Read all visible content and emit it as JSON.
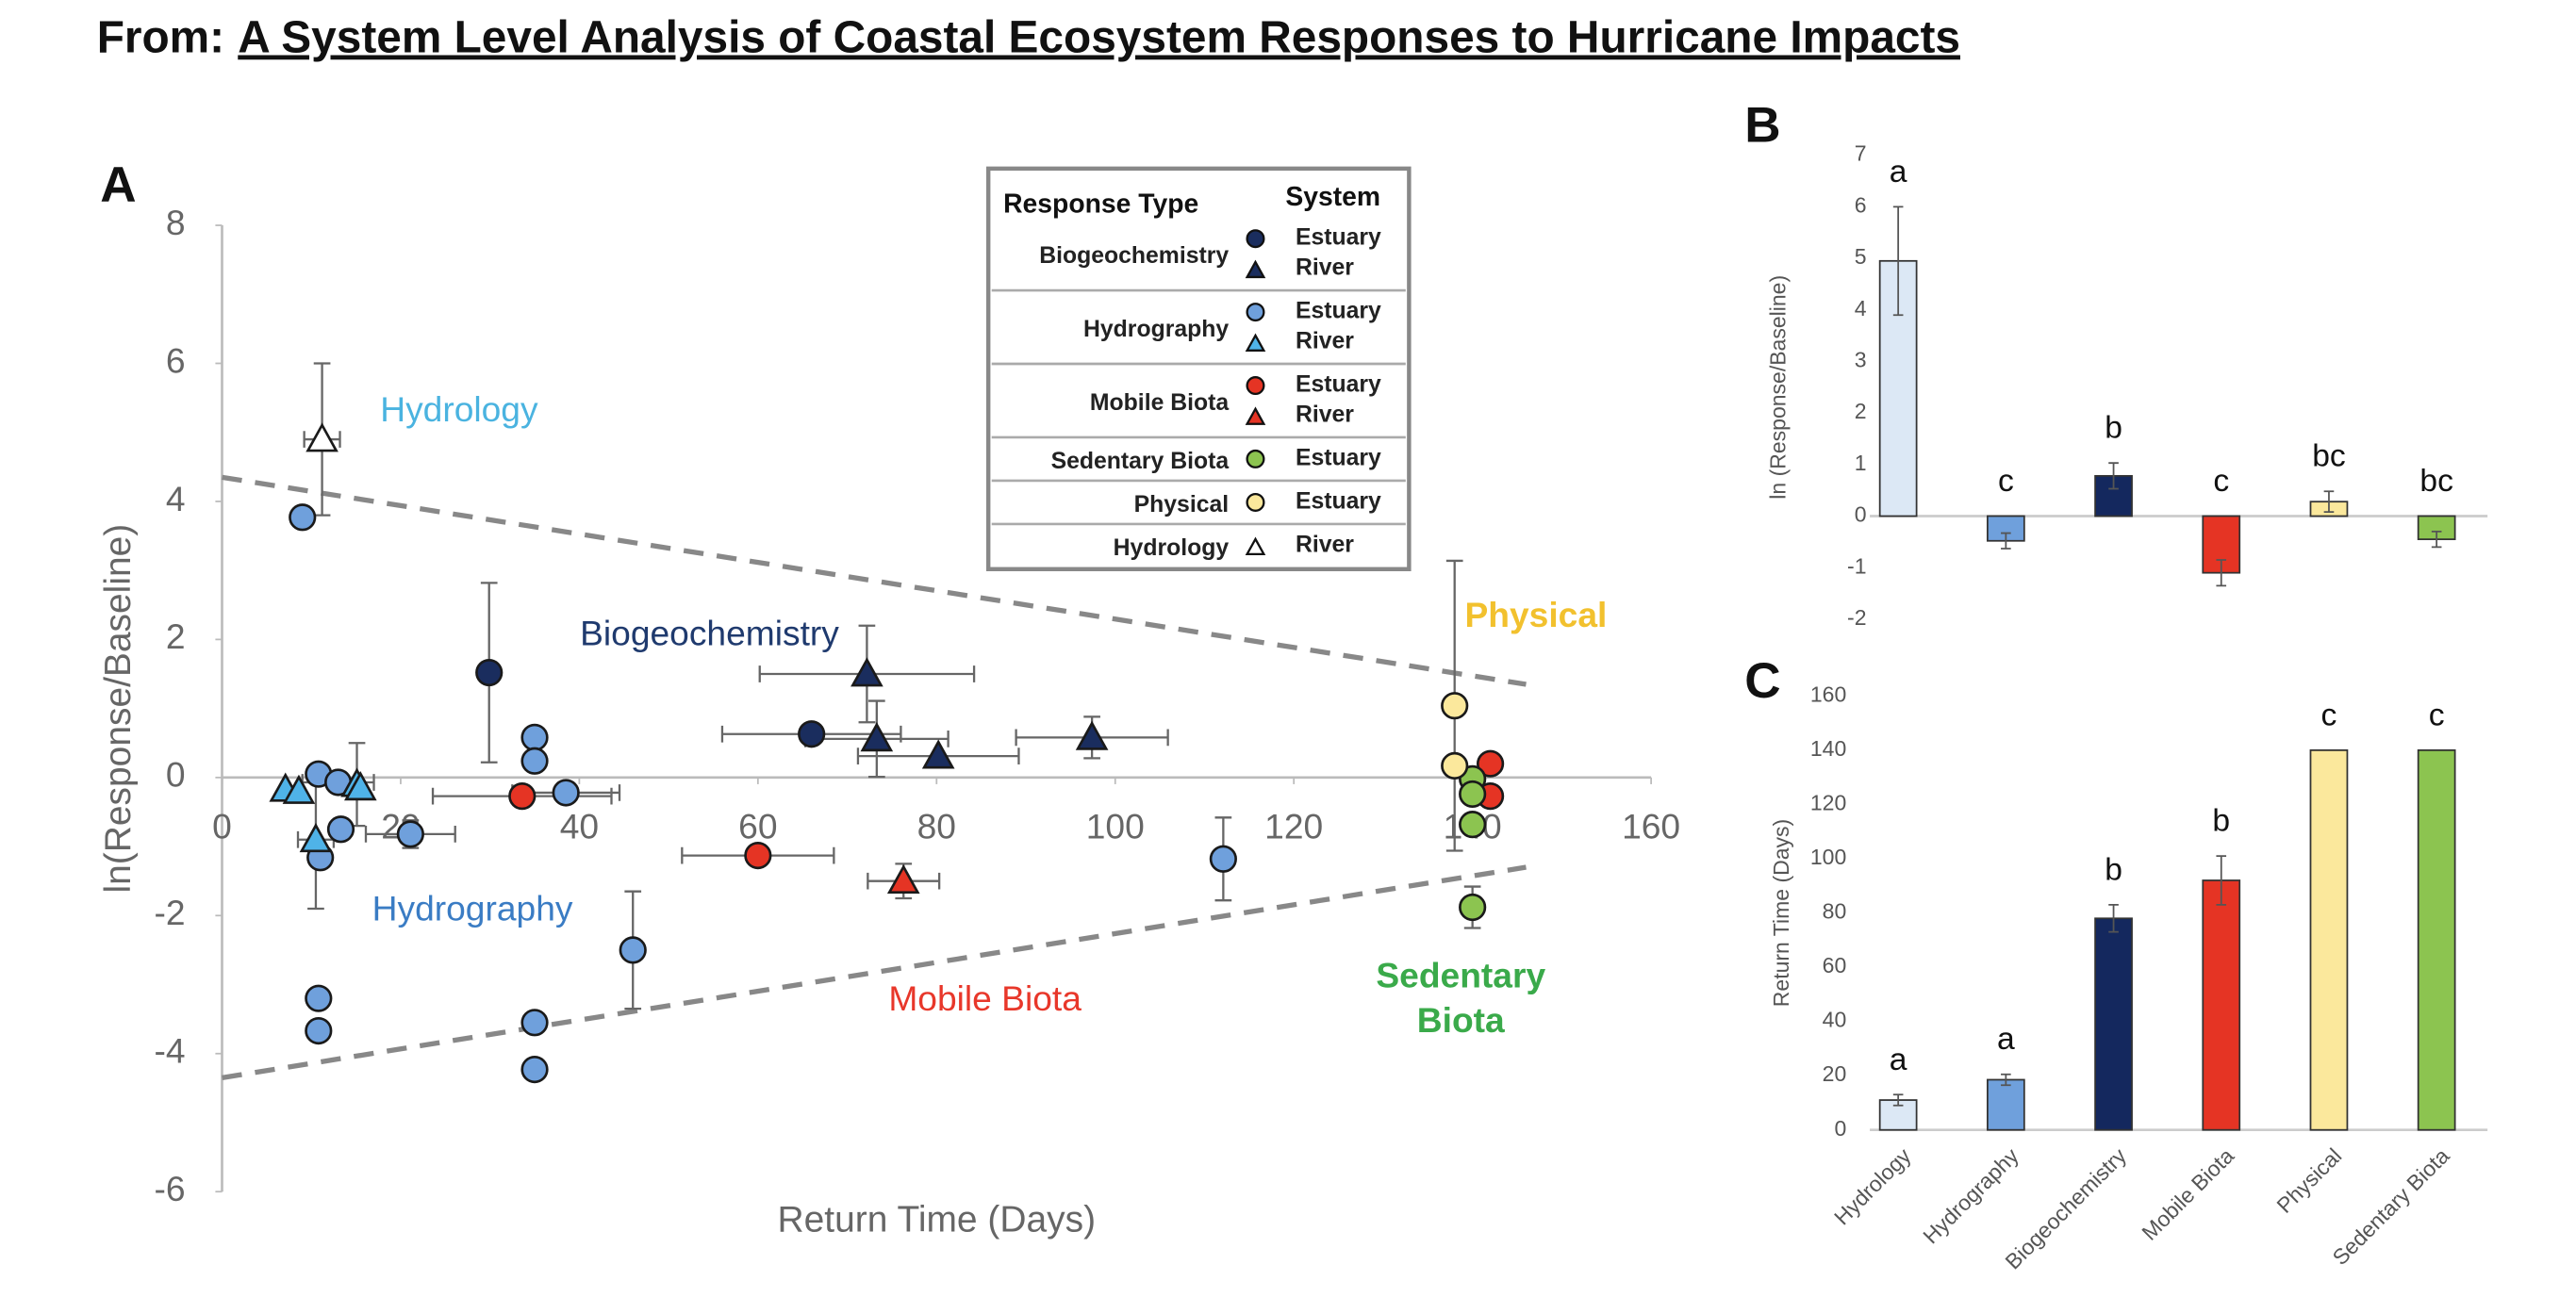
{
  "header": {
    "prefix": "From:",
    "title": "A System Level Analysis of Coastal Ecosystem Responses to Hurricane Impacts"
  },
  "chart_data": [
    {
      "type": "scatter",
      "panel": "A",
      "xlabel": "Return Time (Days)",
      "ylabel": "ln(Response/Baseline)",
      "xlim": [
        0,
        160
      ],
      "xticks": [
        0,
        20,
        40,
        60,
        80,
        100,
        120,
        140,
        160
      ],
      "ylim": [
        -6,
        8
      ],
      "yticks": [
        -6,
        -4,
        -2,
        0,
        2,
        4,
        6,
        8
      ],
      "legend": {
        "title": "Response Type",
        "system_title": "System",
        "corner": "top-right"
      },
      "series": [
        {
          "name": "Estuary",
          "group": "Biogeochemistry",
          "color": "#1a2d5e",
          "marker": "circle",
          "x": [
            29.9,
            66
          ],
          "values": [
            1.52,
            0.63
          ],
          "xerr": [
            null,
            10
          ],
          "yerr": [
            1.3,
            null
          ]
        },
        {
          "name": "River",
          "group": "Biogeochemistry",
          "color": "#1a2d5e",
          "marker": "triangle",
          "x": [
            72.2,
            73.3,
            80.2,
            97.4
          ],
          "values": [
            1.5,
            0.56,
            0.31,
            0.58
          ],
          "xerr": [
            12,
            8,
            9,
            8.5
          ],
          "yerr": [
            0.7,
            0.55,
            null,
            0.3
          ]
        },
        {
          "name": "Estuary",
          "group": "Hydrography",
          "color": "#6fa0dc",
          "marker": "circle",
          "x": [
            9,
            10.8,
            13,
            11,
            13.3,
            21.1,
            35,
            35,
            38.5,
            10.8,
            10.8,
            35,
            35,
            46,
            112.1
          ],
          "values": [
            3.77,
            0.05,
            -0.07,
            -1.16,
            -0.75,
            -0.82,
            0.58,
            0.24,
            -0.22,
            -3.2,
            -3.67,
            -3.55,
            -4.23,
            -2.5,
            -1.18
          ],
          "xerr": [
            null,
            null,
            4,
            null,
            null,
            5,
            null,
            null,
            6,
            null,
            null,
            null,
            null,
            null,
            null
          ],
          "yerr": [
            null,
            null,
            null,
            null,
            null,
            0.2,
            null,
            null,
            null,
            null,
            null,
            null,
            null,
            0.85,
            0.6
          ]
        },
        {
          "name": "River",
          "group": "Hydrography",
          "color": "#4fb3e8",
          "marker": "triangle",
          "x": [
            7.1,
            8.6,
            10.5,
            15.1,
            15.5
          ],
          "values": [
            -0.17,
            -0.2,
            -0.9,
            -0.1,
            -0.15
          ],
          "xerr": [
            null,
            null,
            2,
            null,
            null
          ],
          "yerr": [
            null,
            null,
            1,
            0.6,
            null
          ]
        },
        {
          "name": "Estuary",
          "group": "Mobile Biota",
          "color": "#e53424",
          "marker": "circle",
          "x": [
            33.6,
            60,
            142,
            142
          ],
          "values": [
            -0.27,
            -1.13,
            0.2,
            -0.27
          ],
          "xerr": [
            10,
            8.5,
            null,
            null
          ],
          "yerr": [
            null,
            null,
            null,
            null
          ]
        },
        {
          "name": "River",
          "group": "Mobile Biota",
          "color": "#e53424",
          "marker": "triangle",
          "x": [
            76.3
          ],
          "values": [
            -1.5
          ],
          "xerr": [
            4
          ],
          "yerr": [
            0.25
          ]
        },
        {
          "name": "Estuary",
          "group": "Sedentary Biota",
          "color": "#8cc450",
          "marker": "circle",
          "x": [
            140,
            140,
            140,
            140
          ],
          "values": [
            -0.02,
            -0.24,
            -0.68,
            -1.88
          ],
          "xerr": [
            null,
            null,
            null,
            null
          ],
          "yerr": [
            null,
            null,
            null,
            0.3
          ]
        },
        {
          "name": "Estuary",
          "group": "Physical",
          "color": "#fbe89c",
          "marker": "circle",
          "x": [
            138,
            138
          ],
          "values": [
            1.04,
            0.17
          ],
          "xerr": [
            null,
            null
          ],
          "yerr": [
            2.1,
            null
          ]
        },
        {
          "name": "River",
          "group": "Hydrology",
          "color": "#ffffff",
          "marker": "triangle",
          "x": [
            11.2
          ],
          "values": [
            4.9
          ],
          "xerr": [
            2
          ],
          "yerr": [
            1.1
          ]
        }
      ],
      "reference_lines": [
        {
          "x": [
            0,
            146
          ],
          "y": [
            4.35,
            1.35
          ],
          "color": "#888888"
        },
        {
          "x": [
            0,
            146
          ],
          "y": [
            -4.35,
            -1.3
          ],
          "color": "#888888"
        }
      ],
      "annotations": [
        {
          "text": "Hydrology",
          "color": "#4ab3e0"
        },
        {
          "text": "Biogeochemistry",
          "color": "#1f3a6e"
        },
        {
          "text": "Physical",
          "color": "#f2c12e"
        },
        {
          "text": "Hydrography",
          "color": "#3a7cc4"
        },
        {
          "text": "Mobile Biota",
          "color": "#e8372a"
        },
        {
          "text": "Sedentary",
          "color": "#3aaa4a"
        },
        {
          "text": "Biota",
          "color": "#3aaa4a"
        }
      ]
    },
    {
      "type": "bar",
      "panel": "B",
      "ylabel": "ln (Response/Baseline)",
      "categories": [
        null,
        null,
        null,
        null,
        null,
        null
      ],
      "values": [
        4.95,
        -0.48,
        0.78,
        -1.1,
        0.28,
        -0.45
      ],
      "errors": [
        1.05,
        0.15,
        0.25,
        0.25,
        0.2,
        0.15
      ],
      "letters": [
        "a",
        "c",
        "b",
        "c",
        "bc",
        "bc"
      ],
      "colors": [
        "#dce8f5",
        "#6fa0dc",
        "#14285e",
        "#e53424",
        "#fbe89c",
        "#8cc450"
      ],
      "ylim": [
        -2,
        7
      ],
      "yticks": [
        -2,
        -1,
        0,
        1,
        2,
        3,
        4,
        5,
        6,
        7
      ]
    },
    {
      "type": "bar",
      "panel": "C",
      "ylabel": "Return Time (Days)",
      "categories": [
        "Hydrology",
        "Hydrography",
        "Biogeochemistry",
        "Mobile Biota",
        "Physical",
        "Sedentary Biota"
      ],
      "values": [
        11,
        18.5,
        78,
        92,
        140,
        140
      ],
      "errors": [
        2,
        2,
        5,
        9,
        null,
        null
      ],
      "letters": [
        "a",
        "a",
        "b",
        "b",
        "c",
        "c"
      ],
      "colors": [
        "#dce8f5",
        "#6fa0dc",
        "#14285e",
        "#e53424",
        "#fbe89c",
        "#8cc450"
      ],
      "ylim": [
        0,
        160
      ],
      "yticks": [
        0,
        20,
        40,
        60,
        80,
        100,
        120,
        140,
        160
      ]
    }
  ]
}
